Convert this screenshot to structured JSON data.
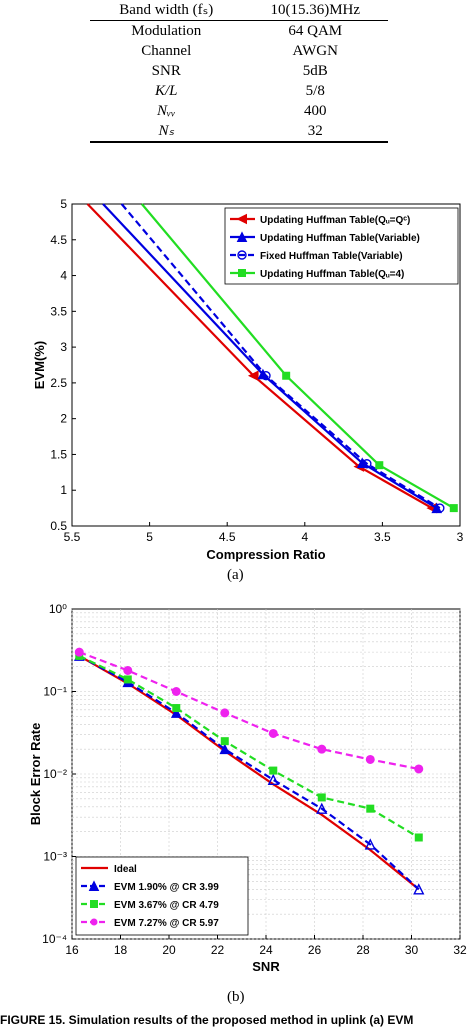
{
  "param_table": {
    "rows": [
      {
        "label": "Band width (fₛ)",
        "value": "10(15.36)MHz"
      },
      {
        "label": "Modulation",
        "value": "64 QAM"
      },
      {
        "label": "Channel",
        "value": "AWGN"
      },
      {
        "label": "SNR",
        "value": "5dB"
      },
      {
        "label": "K/L",
        "value": "5/8"
      },
      {
        "label": "Nᵥᵥ",
        "value": "400"
      },
      {
        "label": "Nₛ",
        "value": "32"
      }
    ]
  },
  "captions": {
    "a": "(a)",
    "b": "(b)"
  },
  "footer": "FIGURE 15. Simulation results of the proposed method in uplink (a) EVM",
  "colors": {
    "red": "#e00000",
    "blue": "#0000e0",
    "green": "#22dd22",
    "magenta": "#ee22ee"
  },
  "chart_data": [
    {
      "type": "line",
      "xlabel": "Compression Ratio",
      "ylabel": "EVM(%)",
      "xlim": [
        5.5,
        3
      ],
      "ylim": [
        0.5,
        5
      ],
      "x_reversed": true,
      "xticks": [
        "5.5",
        "5",
        "4.5",
        "4",
        "3.5",
        "3"
      ],
      "yticks": [
        "0.5",
        "1",
        "1.5",
        "2",
        "2.5",
        "3",
        "3.5",
        "4",
        "4.5",
        "5"
      ],
      "legend_position": "top-right",
      "series": [
        {
          "name": "Updating Huffman Table(Qᵤ=Qᶜ)",
          "color": "#e00000",
          "style": "solid",
          "marker": "triangle-left",
          "x": [
            5.4,
            4.33,
            3.65,
            3.18
          ],
          "y": [
            5.0,
            2.6,
            1.33,
            0.75
          ],
          "marker_idx": [
            1,
            2,
            3
          ]
        },
        {
          "name": "Updating Huffman Table(Variable)",
          "color": "#0000e0",
          "style": "solid",
          "marker": "triangle-up",
          "x": [
            5.3,
            4.27,
            3.63,
            3.15
          ],
          "y": [
            5.0,
            2.62,
            1.38,
            0.75
          ],
          "marker_idx": [
            1,
            2,
            3
          ]
        },
        {
          "name": "Fixed Huffman Table(Variable)",
          "color": "#0000e0",
          "style": "dashed",
          "marker": "circle",
          "x": [
            5.18,
            4.25,
            3.6,
            3.13
          ],
          "y": [
            5.0,
            2.6,
            1.37,
            0.75
          ],
          "marker_idx": [
            1,
            2,
            3
          ]
        },
        {
          "name": "Updating Huffman Table(Qᵤ=4)",
          "color": "#22dd22",
          "style": "solid",
          "marker": "square",
          "x": [
            5.05,
            4.12,
            3.52,
            3.04
          ],
          "y": [
            5.0,
            2.6,
            1.35,
            0.75
          ],
          "marker_idx": [
            1,
            2,
            3
          ]
        }
      ]
    },
    {
      "type": "line",
      "xlabel": "SNR",
      "ylabel": "Block Error Rate",
      "xlim": [
        16,
        32
      ],
      "ylim": [
        0.0001,
        1
      ],
      "yscale": "log",
      "xticks": [
        "16",
        "18",
        "20",
        "22",
        "24",
        "26",
        "28",
        "30",
        "32"
      ],
      "yticks": [
        "10⁰",
        "10⁻¹",
        "10⁻²",
        "10⁻³",
        "10⁻⁴"
      ],
      "grid": true,
      "legend_position": "bottom-left",
      "series": [
        {
          "name": "Ideal",
          "color": "#e00000",
          "style": "solid",
          "marker": "none",
          "x": [
            16.3,
            18.3,
            20.3,
            22.3,
            24.3,
            26.3,
            28.3,
            30.3
          ],
          "y": [
            0.27,
            0.125,
            0.052,
            0.019,
            0.0075,
            0.0032,
            0.0012,
            0.0004
          ]
        },
        {
          "name": "EVM 1.90% @ CR 3.99",
          "color": "#0000e0",
          "style": "dashed",
          "marker": "triangle-up",
          "x": [
            16.3,
            18.3,
            20.3,
            22.3,
            24.3,
            26.3,
            28.3,
            30.3
          ],
          "y": [
            0.27,
            0.13,
            0.055,
            0.02,
            0.0085,
            0.0038,
            0.0014,
            0.0004
          ]
        },
        {
          "name": "EVM 3.67% @ CR 4.79",
          "color": "#22dd22",
          "style": "dashed",
          "marker": "square",
          "x": [
            16.3,
            18.3,
            20.3,
            22.3,
            24.3,
            26.3,
            28.3,
            30.3
          ],
          "y": [
            0.27,
            0.14,
            0.063,
            0.025,
            0.011,
            0.0052,
            0.0038,
            0.0017
          ]
        },
        {
          "name": "EVM 7.27% @ CR 5.97",
          "color": "#ee22ee",
          "style": "dashed",
          "marker": "circle",
          "x": [
            16.3,
            18.3,
            20.3,
            22.3,
            24.3,
            26.3,
            28.3,
            30.3
          ],
          "y": [
            0.3,
            0.18,
            0.1,
            0.055,
            0.031,
            0.02,
            0.015,
            0.0115
          ]
        }
      ]
    }
  ]
}
